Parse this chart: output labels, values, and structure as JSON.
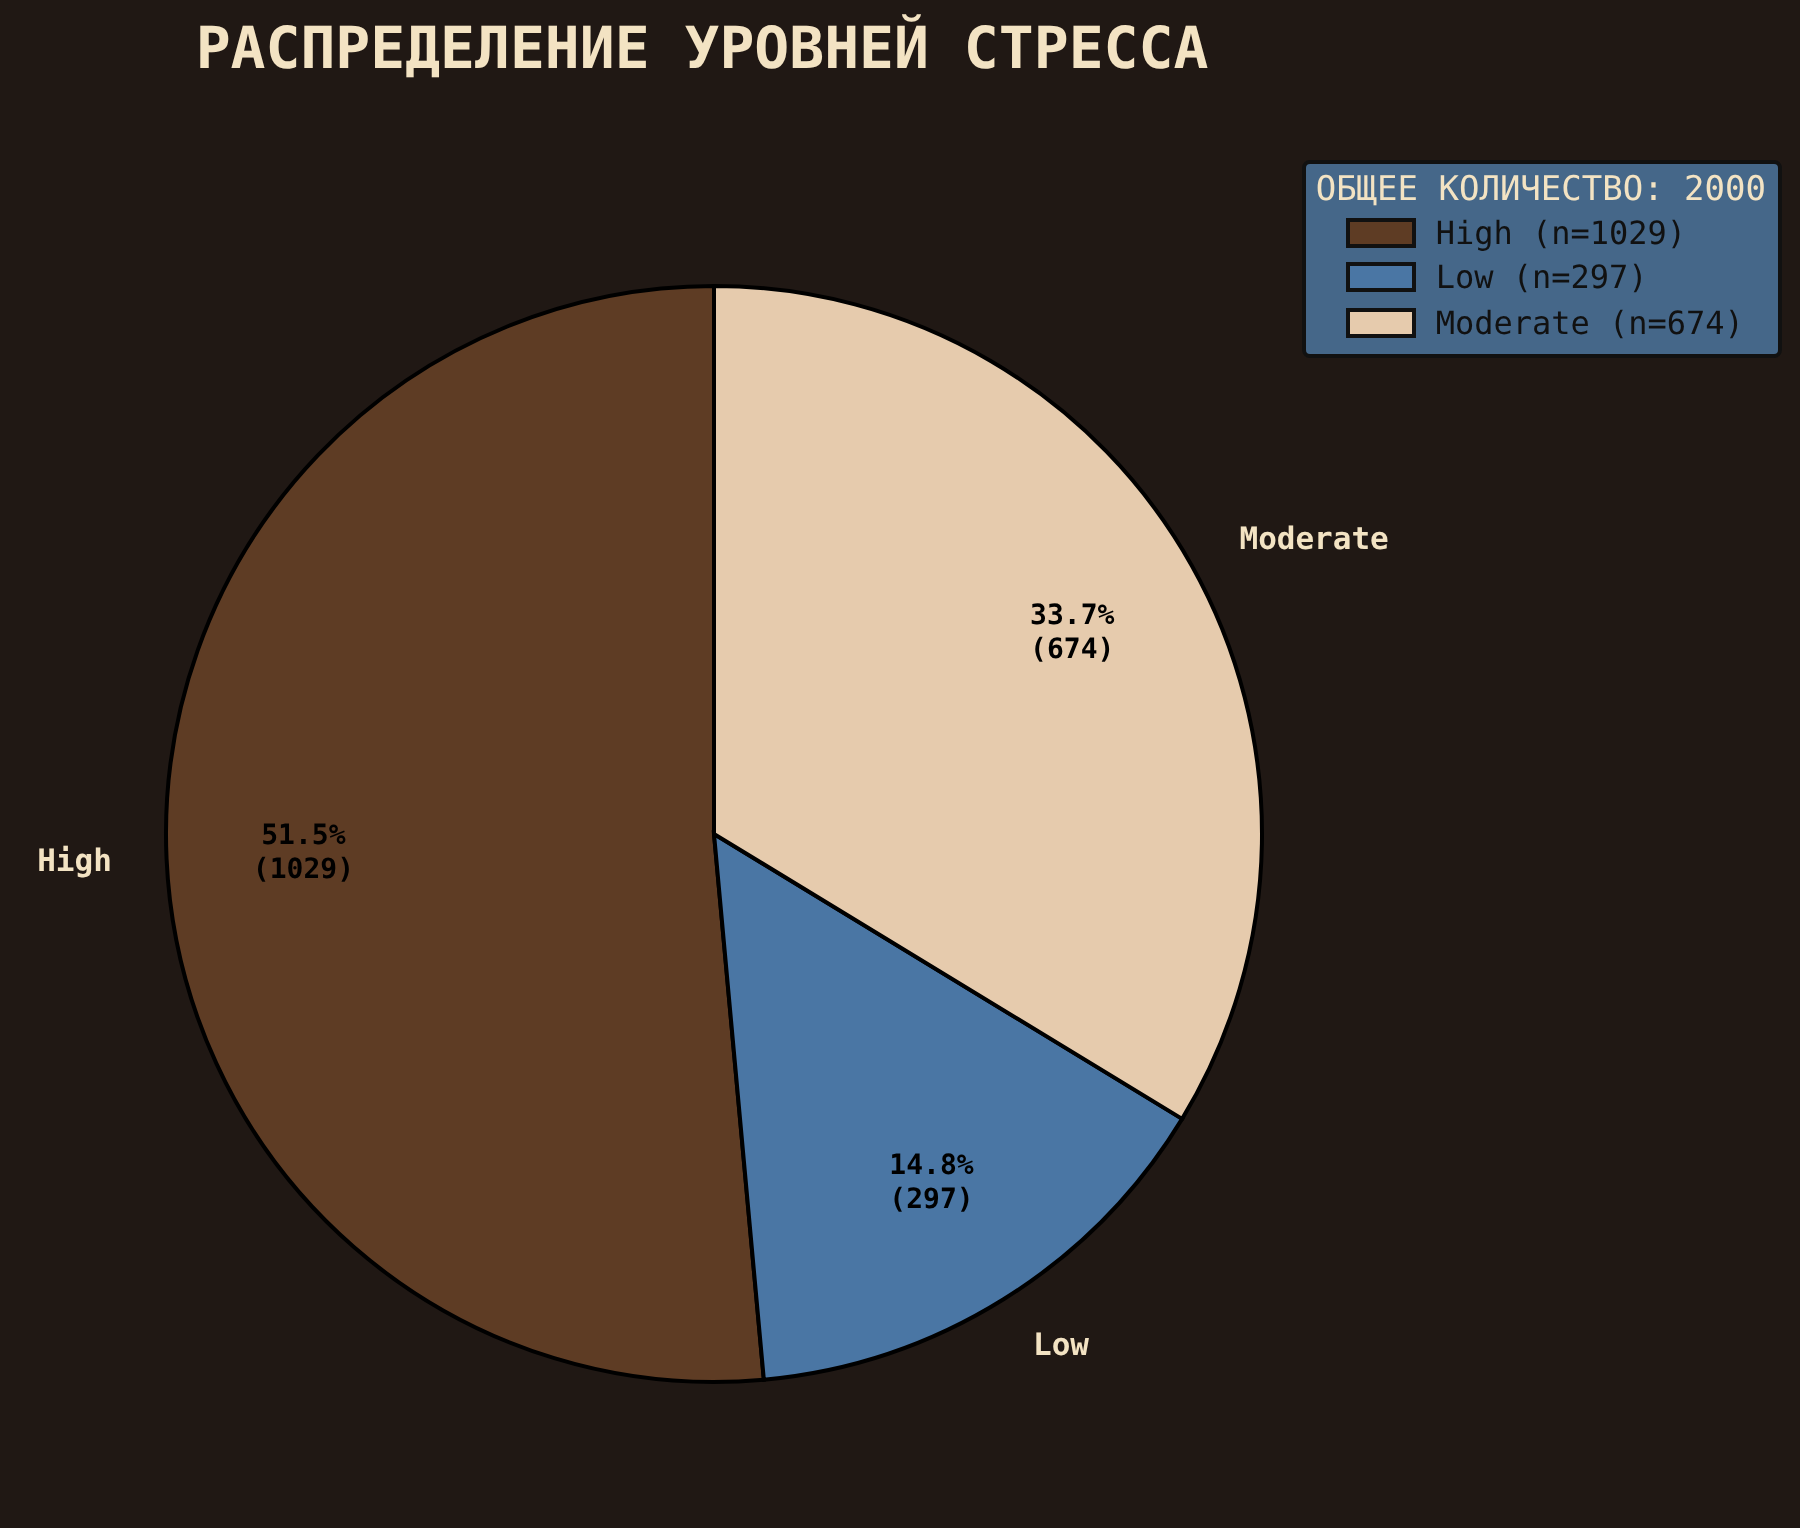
{
  "chart_data": {
    "type": "pie",
    "title": "РАСПРЕДЕЛЕНИЕ УРОВНЕЙ СТРЕССА",
    "categories": [
      "High",
      "Low",
      "Moderate"
    ],
    "values": [
      1029,
      297,
      674
    ],
    "colors": [
      "#5e3c24",
      "#4a76a4",
      "#e6cbad"
    ],
    "value_labels": [
      "51.5%\n(1029)",
      "14.8%\n(297)",
      "33.7%\n(674)"
    ],
    "legend": "top right",
    "legend_title": "ОБЩЕЕ КОЛИЧЕСТВО: 2000",
    "annotations": [
      "(n=1029)",
      "(n=297)",
      "(n=674)"
    ]
  }
}
